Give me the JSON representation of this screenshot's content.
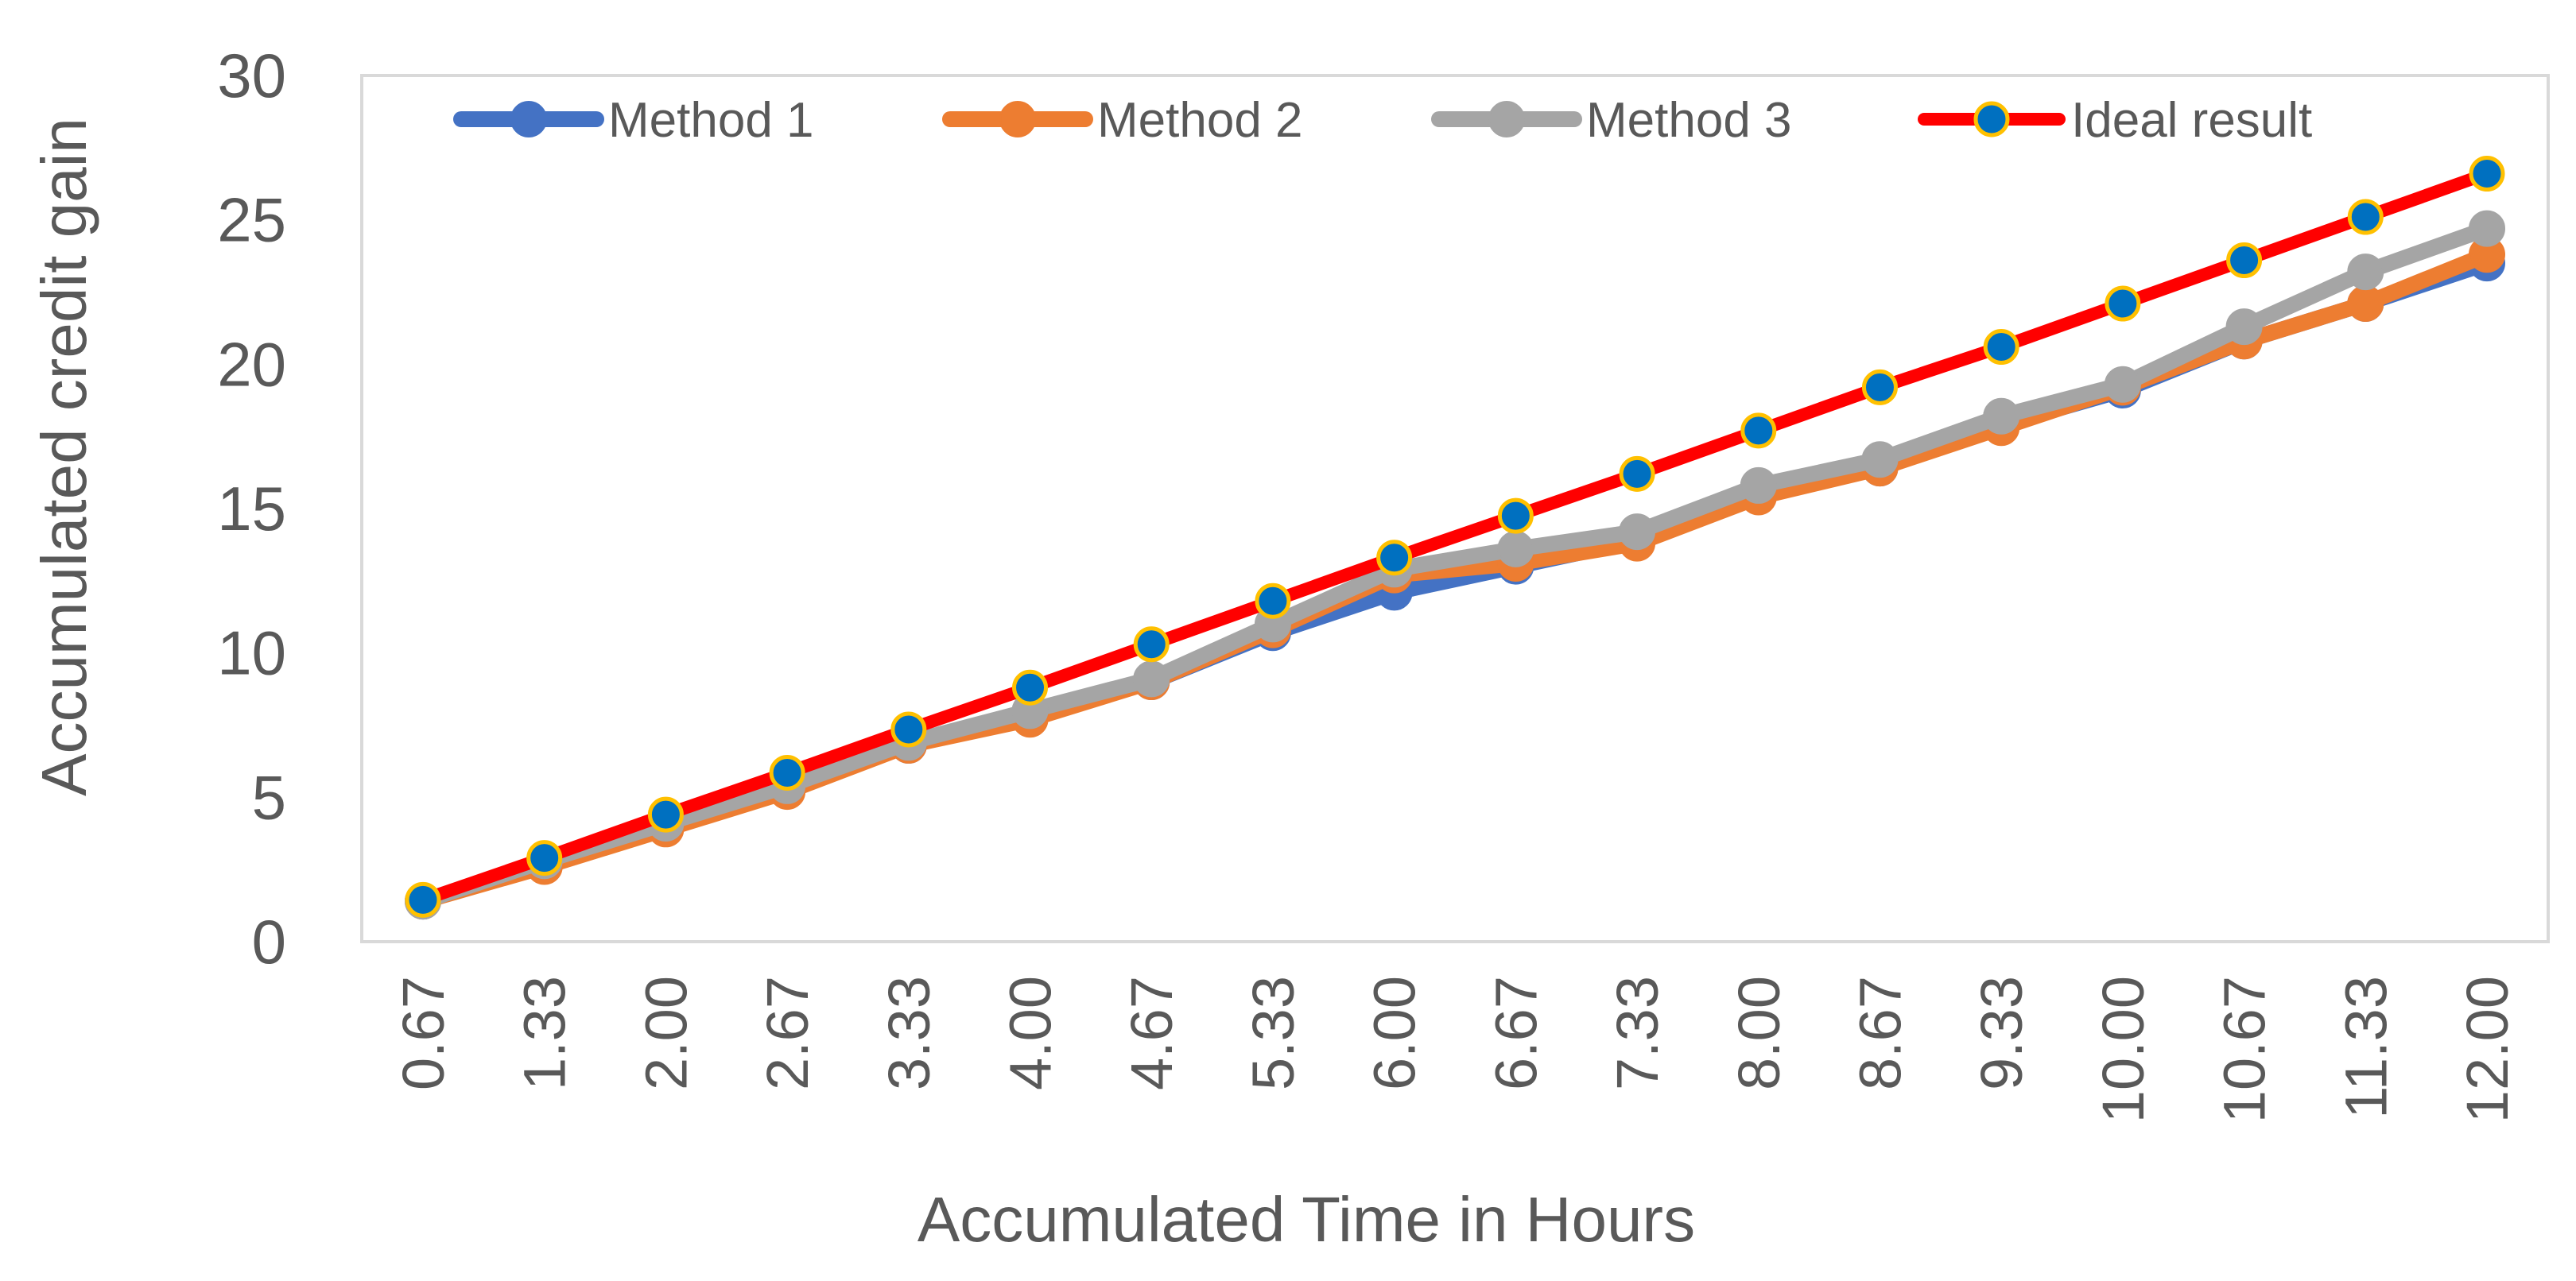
{
  "chart_data": {
    "type": "line",
    "xlabel": "Accumulated Time in Hours",
    "ylabel": "Accumulated credit gain",
    "ylim": [
      0,
      30
    ],
    "yticks": [
      0,
      5,
      10,
      15,
      20,
      25,
      30
    ],
    "grid": false,
    "legend_position": "top",
    "categories": [
      "0.67",
      "1.33",
      "2.00",
      "2.67",
      "3.33",
      "4.00",
      "4.67",
      "5.33",
      "6.00",
      "6.67",
      "7.33",
      "8.00",
      "8.67",
      "9.33",
      "10.00",
      "10.67",
      "11.33",
      "12.00"
    ],
    "series": [
      {
        "name": "Method 1",
        "color": "#4472C4",
        "values": [
          1.4,
          2.7,
          4.0,
          5.3,
          6.8,
          7.8,
          9.0,
          10.7,
          12.1,
          13.0,
          13.9,
          15.5,
          16.4,
          17.9,
          19.1,
          20.8,
          22.1,
          23.5
        ]
      },
      {
        "name": "Method 2",
        "color": "#ED7D31",
        "values": [
          1.4,
          2.6,
          3.9,
          5.2,
          6.8,
          7.7,
          9.0,
          10.8,
          12.7,
          13.1,
          13.8,
          15.4,
          16.4,
          17.8,
          19.2,
          20.8,
          22.1,
          23.8
        ]
      },
      {
        "name": "Method 3",
        "color": "#A5A5A5",
        "values": [
          1.4,
          2.8,
          4.1,
          5.4,
          6.9,
          8.0,
          9.1,
          11.0,
          12.9,
          13.6,
          14.2,
          15.8,
          16.7,
          18.2,
          19.3,
          21.3,
          23.2,
          24.7
        ]
      },
      {
        "name": "Ideal result",
        "color": "#FF0000",
        "marker_fill": "#0070C0",
        "marker_edge": "#FFC000",
        "values": [
          1.45,
          2.9,
          4.4,
          5.85,
          7.35,
          8.8,
          10.3,
          11.8,
          13.3,
          14.75,
          16.2,
          17.7,
          19.2,
          20.6,
          22.1,
          23.6,
          25.1,
          26.6
        ]
      }
    ]
  }
}
